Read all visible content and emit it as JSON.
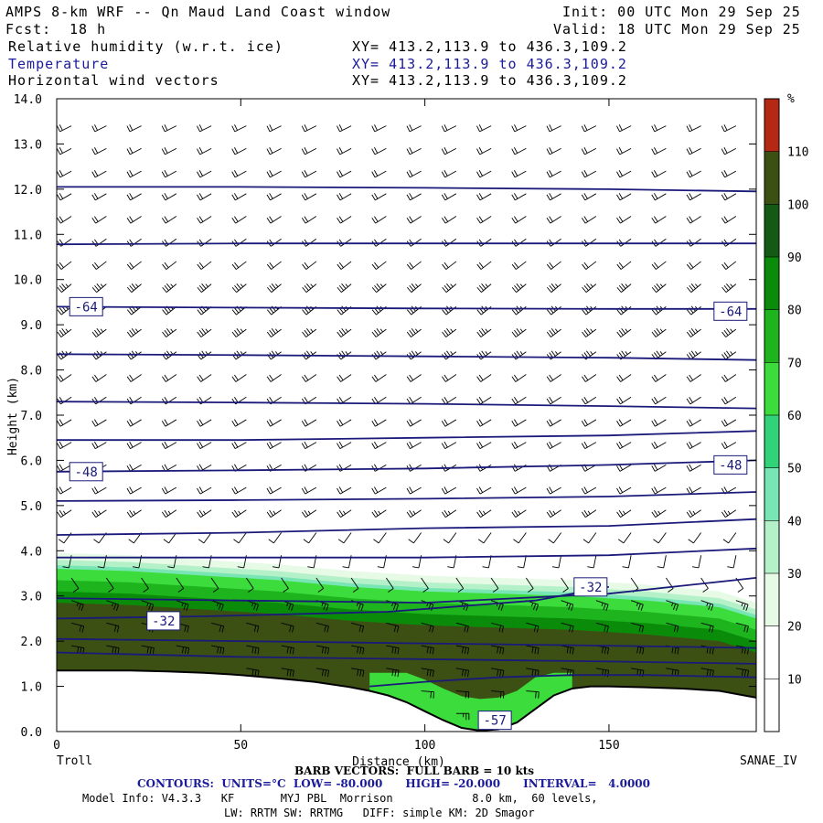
{
  "header": {
    "title": "AMPS 8-km WRF -- Qn Maud Land Coast window",
    "fcst_label": "Fcst:",
    "fcst_value": "18 h",
    "init": "Init: 00 UTC Mon 29 Sep 25",
    "valid": "Valid: 18 UTC Mon 29 Sep 25",
    "fields": [
      {
        "name": "Relative humidity (w.r.t. ice)",
        "xy": "XY= 413.2,113.9 to 436.3,109.2"
      },
      {
        "name": "Temperature",
        "xy": "XY= 413.2,113.9 to 436.3,109.2"
      },
      {
        "name": "Horizontal wind vectors",
        "xy": "XY= 413.2,113.9 to 436.3,109.2"
      }
    ]
  },
  "footer": {
    "barb": "BARB VECTORS:  FULL BARB = 10 kts",
    "contours": "CONTOURS:  UNITS=°C  LOW= -80.000      HIGH= -20.000      INTERVAL=   4.0000",
    "model_info": "Model Info: V4.3.3   KF       MYJ PBL  Morrison            8.0 km,  60 levels,",
    "physics": "LW: RRTM SW: RRTMG   DIFF: simple KM: 2D Smagor"
  },
  "colors": {
    "contour": "#1a1a7a",
    "terrain_line": "#000000",
    "rh_scale": [
      "#ffffff",
      "#ffffff",
      "#e6fae6",
      "#b4f0c8",
      "#78e6b4",
      "#32d278",
      "#3cdc3c",
      "#1eb41e",
      "#0a8c0a",
      "#145a14",
      "#3c5014",
      "#b42814"
    ]
  },
  "chart_data": {
    "type": "heatmap",
    "ylabel": "Height (km)",
    "xlabel": "Distance (km)",
    "xlim": [
      0,
      190
    ],
    "ylim": [
      0,
      14
    ],
    "x_ticks": [
      "0",
      "50",
      "100",
      "150"
    ],
    "y_ticks": [
      "0.0",
      "1.0",
      "2.0",
      "3.0",
      "4.0",
      "5.0",
      "6.0",
      "7.0",
      "8.0",
      "9.0",
      "10.0",
      "11.0",
      "12.0",
      "13.0",
      "14.0"
    ],
    "left_end_label": "Troll",
    "right_end_label": "SANAE_IV",
    "colorbar": {
      "unit": "%",
      "levels": [
        10,
        20,
        30,
        40,
        50,
        60,
        70,
        80,
        90,
        100,
        110
      ],
      "labels": [
        "10",
        "20",
        "30",
        "40",
        "50",
        "60",
        "70",
        "80",
        "90",
        "100",
        "110"
      ]
    },
    "terrain_km": {
      "x": [
        0,
        10,
        20,
        30,
        40,
        50,
        60,
        70,
        80,
        85,
        90,
        95,
        100,
        105,
        110,
        115,
        120,
        125,
        130,
        135,
        140,
        145,
        150,
        160,
        170,
        180,
        190
      ],
      "y": [
        1.35,
        1.35,
        1.35,
        1.33,
        1.3,
        1.25,
        1.18,
        1.1,
        0.98,
        0.9,
        0.8,
        0.65,
        0.45,
        0.25,
        0.08,
        0.02,
        0.05,
        0.2,
        0.5,
        0.8,
        0.95,
        1.0,
        1.0,
        0.98,
        0.95,
        0.9,
        0.75
      ]
    },
    "moist_layer_top_km": {
      "x": [
        0,
        20,
        40,
        60,
        80,
        100,
        120,
        140,
        160,
        180,
        190
      ],
      "y": [
        3.6,
        3.55,
        3.45,
        3.35,
        3.2,
        3.1,
        3.05,
        3.0,
        2.9,
        2.75,
        2.5
      ]
    },
    "temperature_isotherms": [
      {
        "x": [
          0,
          50,
          100,
          150,
          190
        ],
        "y": [
          12.05,
          12.05,
          12.03,
          12.0,
          11.95
        ]
      },
      {
        "x": [
          0,
          50,
          100,
          150,
          190
        ],
        "y": [
          10.78,
          10.8,
          10.8,
          10.8,
          10.8
        ]
      },
      {
        "label": "-64",
        "x": [
          0,
          50,
          100,
          150,
          190
        ],
        "y": [
          9.4,
          9.38,
          9.36,
          9.35,
          9.35
        ]
      },
      {
        "x": [
          0,
          50,
          100,
          150,
          190
        ],
        "y": [
          8.35,
          8.33,
          8.3,
          8.27,
          8.22
        ]
      },
      {
        "x": [
          0,
          50,
          100,
          150,
          190
        ],
        "y": [
          7.3,
          7.28,
          7.25,
          7.2,
          7.15
        ]
      },
      {
        "x": [
          0,
          50,
          100,
          150,
          190
        ],
        "y": [
          6.45,
          6.45,
          6.5,
          6.55,
          6.65
        ]
      },
      {
        "label": "-48",
        "x": [
          0,
          50,
          100,
          150,
          190
        ],
        "y": [
          5.75,
          5.78,
          5.82,
          5.9,
          6.0
        ]
      },
      {
        "x": [
          0,
          50,
          100,
          150,
          190
        ],
        "y": [
          5.1,
          5.12,
          5.15,
          5.2,
          5.3
        ]
      },
      {
        "x": [
          0,
          50,
          100,
          150,
          190
        ],
        "y": [
          4.35,
          4.4,
          4.5,
          4.55,
          4.7
        ]
      },
      {
        "x": [
          0,
          50,
          100,
          150,
          190
        ],
        "y": [
          3.85,
          3.85,
          3.85,
          3.9,
          4.05
        ]
      },
      {
        "label": "-32",
        "x": [
          0,
          50,
          100,
          150,
          190
        ],
        "y": [
          2.95,
          2.9,
          2.85,
          3.05,
          3.4
        ]
      },
      {
        "label": "-32",
        "x": [
          0,
          40,
          90,
          130,
          150
        ],
        "y": [
          2.5,
          2.55,
          2.65,
          2.9,
          3.2
        ]
      },
      {
        "x": [
          0,
          50,
          100,
          150,
          190
        ],
        "y": [
          2.05,
          2.0,
          1.95,
          1.9,
          1.85
        ]
      },
      {
        "x": [
          0,
          50,
          100,
          150,
          190
        ],
        "y": [
          1.75,
          1.65,
          1.6,
          1.55,
          1.5
        ]
      },
      {
        "x": [
          85,
          100,
          120,
          140,
          160,
          190
        ],
        "y": [
          1.0,
          1.1,
          1.2,
          1.25,
          1.25,
          1.2
        ]
      }
    ],
    "contour_labels": [
      {
        "text": "-64",
        "x": 8,
        "y": 9.4
      },
      {
        "text": "-64",
        "x": 183,
        "y": 9.3
      },
      {
        "text": "-48",
        "x": 8,
        "y": 5.75
      },
      {
        "text": "-48",
        "x": 183,
        "y": 5.9
      },
      {
        "text": "-32",
        "x": 145,
        "y": 3.2
      },
      {
        "text": "-32",
        "x": 29,
        "y": 2.45
      },
      {
        "text": "-57",
        "x": 119,
        "y": 0.25
      }
    ],
    "wind_profile_kts": {
      "height_km": [
        0.6,
        1.2,
        2.0,
        3.0,
        4.0,
        5.0,
        6.5,
        8.0,
        10.0,
        12.0,
        14.0
      ],
      "speed": [
        15,
        30,
        30,
        15,
        10,
        20,
        20,
        25,
        25,
        20,
        20
      ],
      "direction_deg": [
        90,
        100,
        100,
        110,
        200,
        240,
        240,
        235,
        230,
        240,
        245
      ]
    }
  }
}
